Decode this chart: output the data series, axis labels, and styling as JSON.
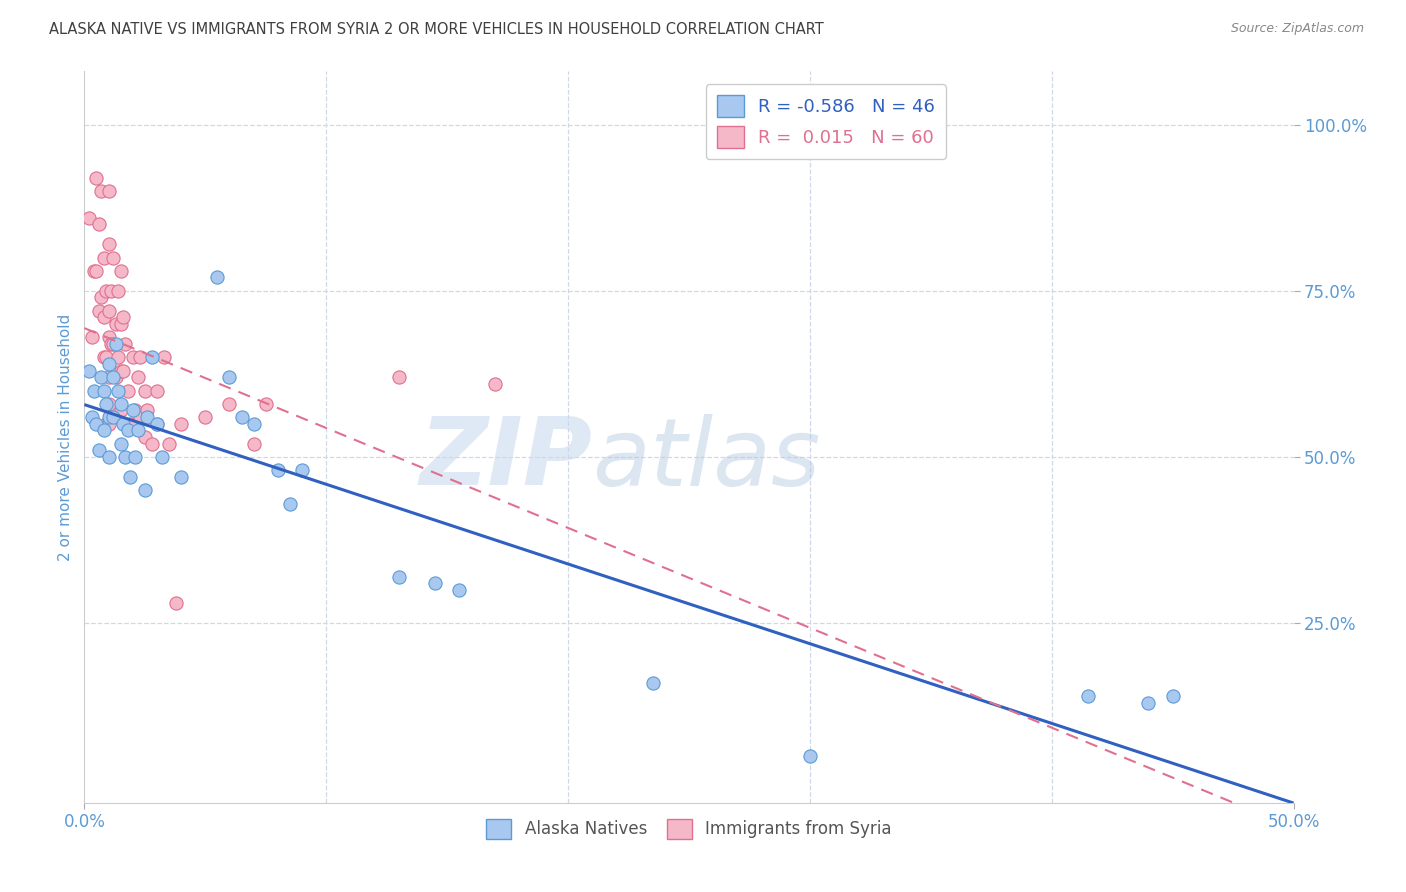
{
  "title": "ALASKA NATIVE VS IMMIGRANTS FROM SYRIA 2 OR MORE VEHICLES IN HOUSEHOLD CORRELATION CHART",
  "source": "Source: ZipAtlas.com",
  "ylabel": "2 or more Vehicles in Household",
  "xlim": [
    0.0,
    0.5
  ],
  "ylim": [
    -0.02,
    1.08
  ],
  "xtick_labels": [
    "0.0%",
    "50.0%"
  ],
  "xtick_values": [
    0.0,
    0.5
  ],
  "ytick_labels": [
    "25.0%",
    "50.0%",
    "75.0%",
    "100.0%"
  ],
  "ytick_values": [
    0.25,
    0.5,
    0.75,
    1.0
  ],
  "alaska_color": "#a8c8f0",
  "alaska_edge_color": "#5b9bd5",
  "syria_color": "#f4b8c8",
  "syria_edge_color": "#e07090",
  "alaska_R": -0.586,
  "alaska_N": 46,
  "syria_R": 0.015,
  "syria_N": 60,
  "alaska_line_color": "#3060c0",
  "syria_line_color": "#e07090",
  "watermark_zip": "ZIP",
  "watermark_atlas": "atlas",
  "alaska_x": [
    0.002,
    0.003,
    0.004,
    0.005,
    0.006,
    0.007,
    0.008,
    0.008,
    0.009,
    0.01,
    0.01,
    0.01,
    0.012,
    0.012,
    0.013,
    0.014,
    0.015,
    0.015,
    0.016,
    0.017,
    0.018,
    0.019,
    0.02,
    0.021,
    0.022,
    0.025,
    0.026,
    0.028,
    0.03,
    0.032,
    0.04,
    0.055,
    0.06,
    0.065,
    0.07,
    0.08,
    0.085,
    0.09,
    0.13,
    0.145,
    0.155,
    0.235,
    0.3,
    0.415,
    0.44,
    0.45
  ],
  "alaska_y": [
    0.63,
    0.56,
    0.6,
    0.55,
    0.51,
    0.62,
    0.6,
    0.54,
    0.58,
    0.64,
    0.56,
    0.5,
    0.62,
    0.56,
    0.67,
    0.6,
    0.58,
    0.52,
    0.55,
    0.5,
    0.54,
    0.47,
    0.57,
    0.5,
    0.54,
    0.45,
    0.56,
    0.65,
    0.55,
    0.5,
    0.47,
    0.77,
    0.62,
    0.56,
    0.55,
    0.48,
    0.43,
    0.48,
    0.32,
    0.31,
    0.3,
    0.16,
    0.05,
    0.14,
    0.13,
    0.14
  ],
  "syria_x": [
    0.002,
    0.003,
    0.004,
    0.005,
    0.005,
    0.006,
    0.006,
    0.007,
    0.007,
    0.008,
    0.008,
    0.008,
    0.009,
    0.009,
    0.009,
    0.01,
    0.01,
    0.01,
    0.01,
    0.01,
    0.01,
    0.01,
    0.011,
    0.011,
    0.012,
    0.012,
    0.013,
    0.013,
    0.014,
    0.014,
    0.015,
    0.015,
    0.015,
    0.015,
    0.016,
    0.016,
    0.017,
    0.018,
    0.019,
    0.02,
    0.021,
    0.022,
    0.023,
    0.023,
    0.025,
    0.025,
    0.026,
    0.028,
    0.03,
    0.03,
    0.033,
    0.035,
    0.038,
    0.04,
    0.05,
    0.06,
    0.07,
    0.075,
    0.13,
    0.17
  ],
  "syria_y": [
    0.86,
    0.68,
    0.78,
    0.92,
    0.78,
    0.85,
    0.72,
    0.9,
    0.74,
    0.8,
    0.71,
    0.65,
    0.75,
    0.65,
    0.55,
    0.9,
    0.82,
    0.72,
    0.68,
    0.62,
    0.58,
    0.55,
    0.75,
    0.67,
    0.8,
    0.67,
    0.7,
    0.62,
    0.75,
    0.65,
    0.78,
    0.7,
    0.63,
    0.57,
    0.71,
    0.63,
    0.67,
    0.6,
    0.55,
    0.65,
    0.57,
    0.62,
    0.65,
    0.56,
    0.6,
    0.53,
    0.57,
    0.52,
    0.6,
    0.55,
    0.65,
    0.52,
    0.28,
    0.55,
    0.56,
    0.58,
    0.52,
    0.58,
    0.62,
    0.61
  ],
  "background_color": "#ffffff",
  "grid_color": "#d0d8e8",
  "title_color": "#404040",
  "tick_label_color": "#5b9bd5"
}
